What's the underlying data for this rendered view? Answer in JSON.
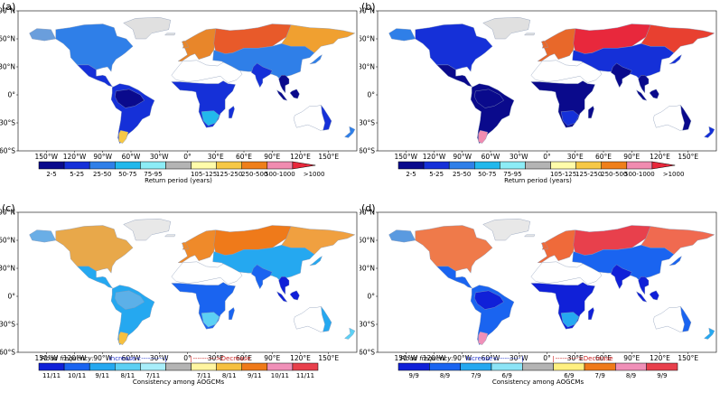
{
  "panels": [
    {
      "id": "a",
      "label": "(a)",
      "type": "return",
      "scheme": "a"
    },
    {
      "id": "b",
      "label": "(b)",
      "type": "return",
      "scheme": "b"
    },
    {
      "id": "c",
      "label": "(c)",
      "type": "cons11",
      "scheme": "c"
    },
    {
      "id": "d",
      "label": "(d)",
      "type": "cons9",
      "scheme": "d"
    }
  ],
  "lat_labels": [
    "90°N",
    "60°N",
    "30°N",
    "0°",
    "30°S",
    "60°S"
  ],
  "lon_labels": [
    "150°W",
    "120°W",
    "90°W",
    "60°W",
    "30°W",
    "0°",
    "30°E",
    "60°E",
    "90°E",
    "120°E",
    "150°E"
  ],
  "return_colorbar": {
    "title": "Return period (years)",
    "labels": [
      "2-5",
      "5-25",
      "25-50",
      "50-75",
      "75-95",
      "105-125",
      "125-250",
      "250-500",
      "500-1000",
      ">1000"
    ],
    "colors": [
      "#0a0a8c",
      "#1530d8",
      "#2f7fe8",
      "#22b8ec",
      "#8cecf6",
      "#b4b4b4",
      "#fffcaa",
      "#f6c846",
      "#ef7f1a",
      "#f08cb0",
      "#e8283c"
    ]
  },
  "cons11_colorbar": {
    "title": "Consistency among AOGCMs",
    "flood_frequency": "Flood frequency:",
    "increase": "Increase<----------",
    "decrease": "---------->Decrease",
    "labels": [
      "11/11",
      "10/11",
      "9/11",
      "8/11",
      "7/11",
      "7/11",
      "8/11",
      "9/11",
      "10/11",
      "11/11"
    ],
    "colors": [
      "#1020d8",
      "#1a64f0",
      "#25a8f0",
      "#5cd0f4",
      "#a8eefa",
      "#b4b4b4",
      "#fff5a0",
      "#f6c040",
      "#ef7a1a",
      "#f090b8",
      "#e8404c"
    ]
  },
  "cons9_colorbar": {
    "title": "Consistency among AOGCMs",
    "flood_frequency": "Flood frequency:",
    "increase": "Increase<----------",
    "decrease": "---------->Decrease",
    "labels": [
      "9/9",
      "8/9",
      "7/9",
      "6/9",
      "6/9",
      "7/9",
      "8/9",
      "9/9"
    ],
    "colors": [
      "#1020d8",
      "#1a64f0",
      "#25a8f0",
      "#8ce4f6",
      "#b4b4b4",
      "#fff080",
      "#ef7a1a",
      "#f090b8",
      "#e8404c"
    ]
  },
  "schemes": {
    "a": {
      "NA": "#2f7fe8",
      "ALASKA": "#6a9edc",
      "GR": "#e0e0e0",
      "CA": "#1530d8",
      "SA": "#1530d8",
      "AMAZ": "#0a0a8c",
      "PAT": "#f6c846",
      "EU": "#e8862a",
      "RU": "#e85a2a",
      "SIB": "#f0a030",
      "ASIA": "#2f7fe8",
      "MENA": "#ffffff",
      "AF": "#1530d8",
      "SAF": "#22b8ec",
      "IN": "#1530d8",
      "SEA": "#0a0a8c",
      "AU": "#ffffff",
      "AUE": "#1530d8",
      "NZ": "#2f7fe8"
    },
    "b": {
      "NA": "#1530d8",
      "ALASKA": "#2f7fe8",
      "GR": "#e0e0e0",
      "CA": "#0a0a8c",
      "SA": "#0a0a8c",
      "AMAZ": "#0a0a8c",
      "PAT": "#f08cb0",
      "EU": "#e8682a",
      "RU": "#e8283c",
      "SIB": "#e84030",
      "ASIA": "#1530d8",
      "MENA": "#ffffff",
      "AF": "#0a0a8c",
      "SAF": "#1530d8",
      "IN": "#0a0a8c",
      "SEA": "#0a0a8c",
      "AU": "#ffffff",
      "AUE": "#0a0a8c",
      "NZ": "#1530d8"
    },
    "c": {
      "NA": "#e8a84a",
      "ALASKA": "#6aaee6",
      "GR": "#e8e8e8",
      "CA": "#25a8f0",
      "SA": "#25a8f0",
      "AMAZ": "#5cb0e8",
      "PAT": "#f6c040",
      "EU": "#ef8a2a",
      "RU": "#ef7a1a",
      "SIB": "#f0a040",
      "ASIA": "#25a8f0",
      "MENA": "#ffffff",
      "AF": "#1a64f0",
      "SAF": "#5cd0f4",
      "IN": "#1a64f0",
      "SEA": "#1020d8",
      "AU": "#ffffff",
      "AUE": "#25a8f0",
      "NZ": "#5cd0f4"
    },
    "d": {
      "NA": "#ef7a4a",
      "ALASKA": "#5a9ae0",
      "GR": "#e8e8e8",
      "CA": "#1a64f0",
      "SA": "#1a64f0",
      "AMAZ": "#1020d8",
      "PAT": "#f090b8",
      "EU": "#ef6a3a",
      "RU": "#e8404c",
      "SIB": "#f06a50",
      "ASIA": "#1a64f0",
      "MENA": "#ffffff",
      "AF": "#1020d8",
      "SAF": "#25a8f0",
      "IN": "#1020d8",
      "SEA": "#1020d8",
      "AU": "#ffffff",
      "AUE": "#1a64f0",
      "NZ": "#25a8f0"
    }
  }
}
